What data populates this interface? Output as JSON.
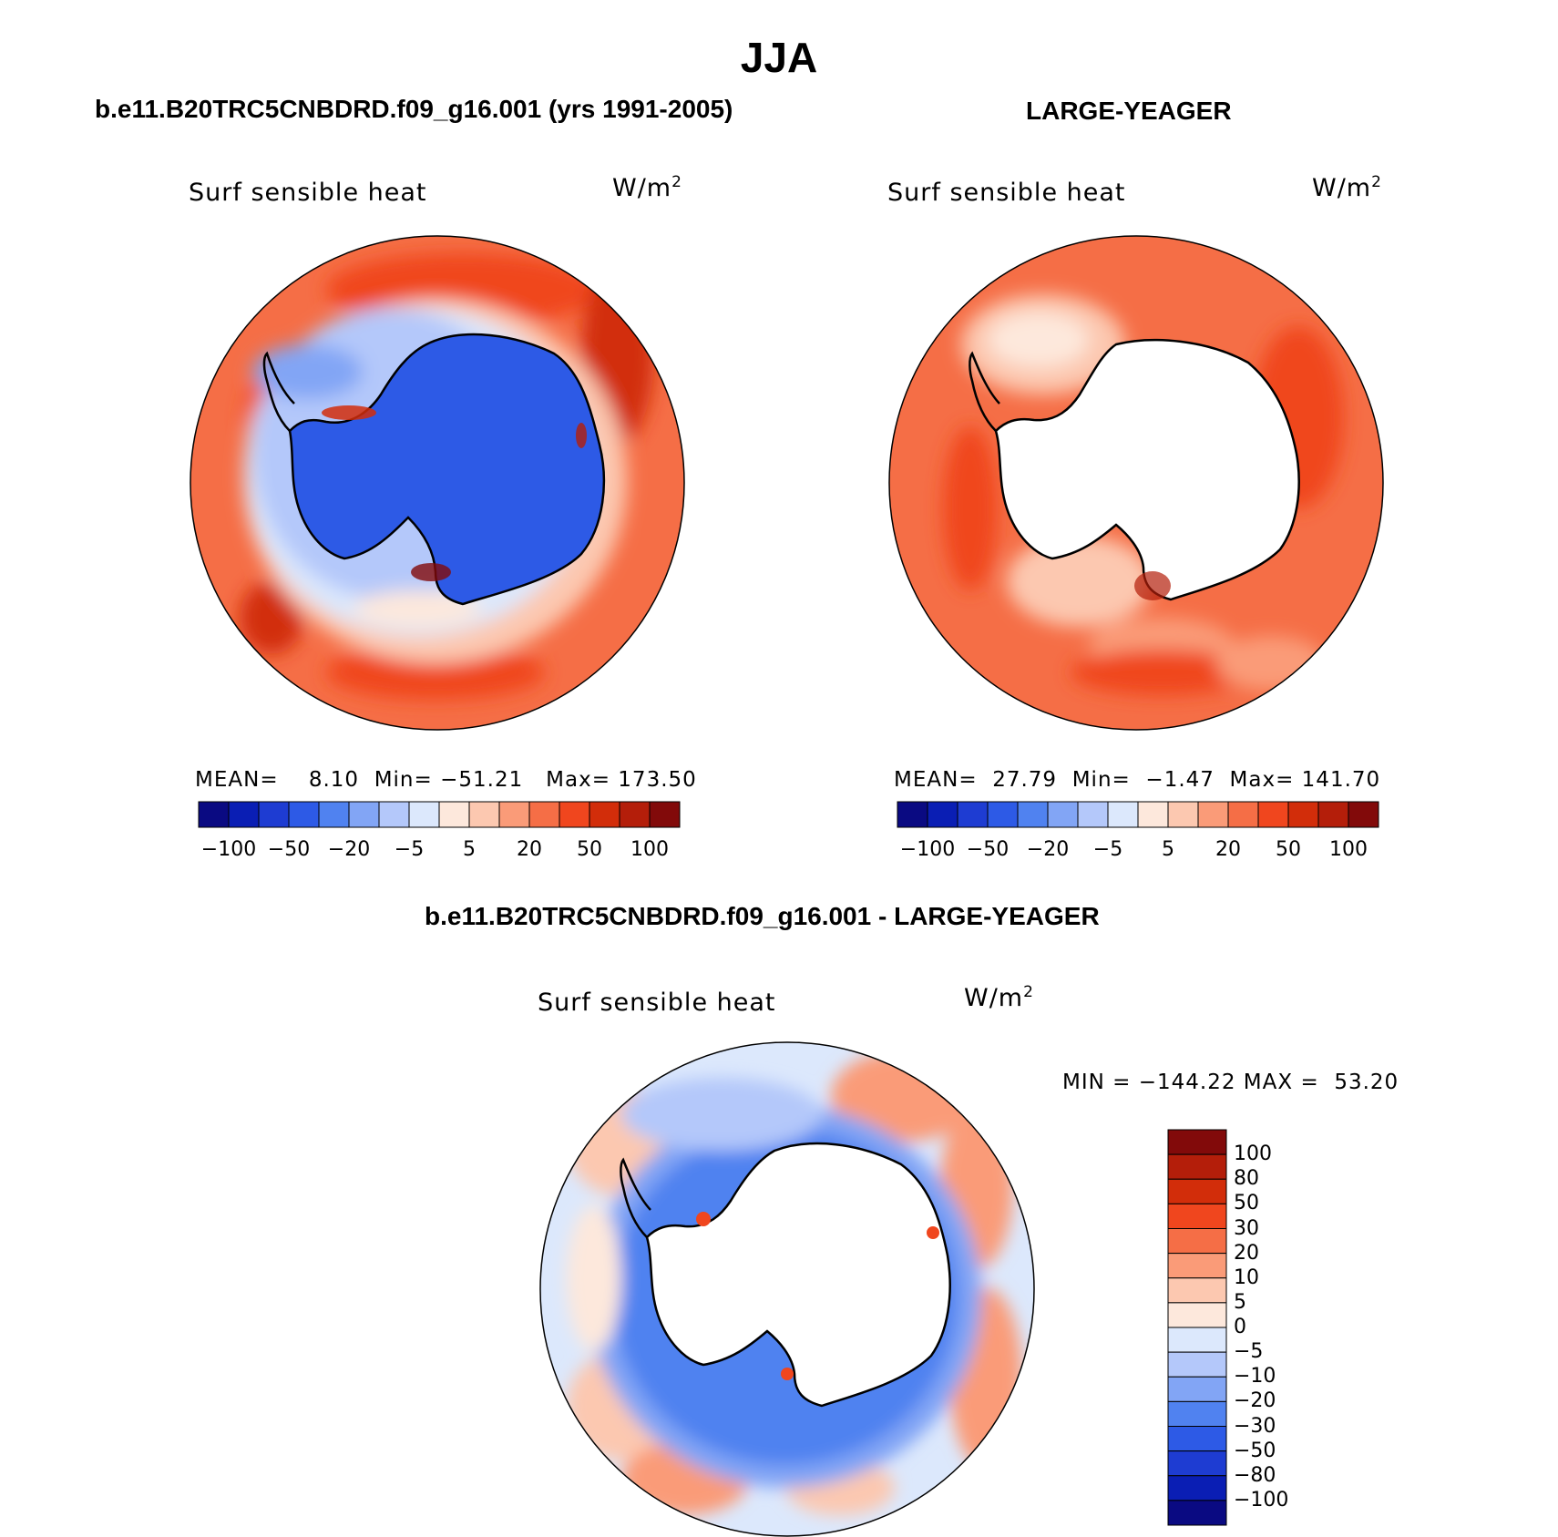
{
  "figure": {
    "title": "JJA"
  },
  "panels": [
    {
      "id": "model",
      "title": "b.e11.B20TRC5CNBDRD.f09_g16.001 (yrs 1991-2005)",
      "variable": "Surf sensible heat",
      "units": "W/m",
      "units_exp": "2",
      "stats": {
        "mean_label": "MEAN=",
        "mean": "8.10",
        "min_label": "Min=",
        "min": "−51.21",
        "max_label": "Max=",
        "max": "173.50"
      }
    },
    {
      "id": "obs",
      "title": "LARGE-YEAGER",
      "variable": "Surf sensible heat",
      "units": "W/m",
      "units_exp": "2",
      "stats": {
        "mean_label": "MEAN=",
        "mean": "27.79",
        "min_label": "Min=",
        "min": "−1.47",
        "max_label": "Max=",
        "max": "141.70"
      }
    },
    {
      "id": "diff",
      "title": "b.e11.B20TRC5CNBDRD.f09_g16.001 - LARGE-YEAGER",
      "variable": "Surf sensible heat",
      "units": "W/m",
      "units_exp": "2",
      "stats": {
        "min_label": "MIN =",
        "min": "−144.22",
        "max_label": "MAX =",
        "max": "53.20"
      }
    }
  ],
  "colorbar_top": {
    "colors": [
      "#0a0a82",
      "#0a1eb4",
      "#1e3cd2",
      "#2d5ae6",
      "#5082f0",
      "#82a5f5",
      "#b4c8fa",
      "#dce8fc",
      "#fde8dc",
      "#fcc8b0",
      "#fa9b78",
      "#f56e46",
      "#f0461e",
      "#d22d0a",
      "#b41e0a",
      "#820a0a"
    ],
    "tick_labels": [
      "−100",
      "−50",
      "−20",
      "−5",
      "5",
      "20",
      "50",
      "100"
    ]
  },
  "colorbar_diff": {
    "colors_top_to_bottom": [
      "#820a0a",
      "#b41e0a",
      "#d22d0a",
      "#f0461e",
      "#f56e46",
      "#fa9b78",
      "#fcc8b0",
      "#fde8dc",
      "#dce8fc",
      "#b4c8fa",
      "#82a5f5",
      "#5082f0",
      "#2d5ae6",
      "#1e3cd2",
      "#0a1eb4",
      "#0a0a82"
    ],
    "tick_labels": [
      "100",
      "80",
      "50",
      "30",
      "20",
      "10",
      "5",
      "0",
      "−5",
      "−10",
      "−20",
      "−30",
      "−50",
      "−80",
      "−100"
    ]
  }
}
